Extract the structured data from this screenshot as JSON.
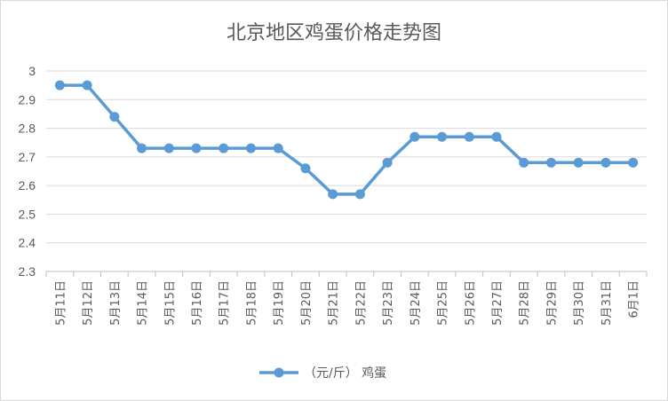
{
  "chart_data": {
    "type": "line",
    "title": "北京地区鸡蛋价格走势图",
    "xlabel": "",
    "ylabel": "",
    "ylim": [
      2.3,
      3.0
    ],
    "yticks": [
      "2.3",
      "2.4",
      "2.5",
      "2.6",
      "2.7",
      "2.8",
      "2.9",
      "3"
    ],
    "grid": true,
    "legend_position": "bottom",
    "categories": [
      "5月11日",
      "5月12日",
      "5月13日",
      "5月14日",
      "5月15日",
      "5月16日",
      "5月17日",
      "5月18日",
      "5月19日",
      "5月20日",
      "5月21日",
      "5月22日",
      "5月23日",
      "5月24日",
      "5月25日",
      "5月26日",
      "5月27日",
      "5月28日",
      "5月29日",
      "5月30日",
      "5月31日",
      "6月1日"
    ],
    "series": [
      {
        "name": "（元/斤） 鸡蛋",
        "color": "#5b9bd5",
        "values": [
          2.95,
          2.95,
          2.84,
          2.73,
          2.73,
          2.73,
          2.73,
          2.73,
          2.73,
          2.66,
          2.57,
          2.57,
          2.68,
          2.77,
          2.77,
          2.77,
          2.77,
          2.68,
          2.68,
          2.68,
          2.68,
          2.68
        ]
      }
    ]
  }
}
